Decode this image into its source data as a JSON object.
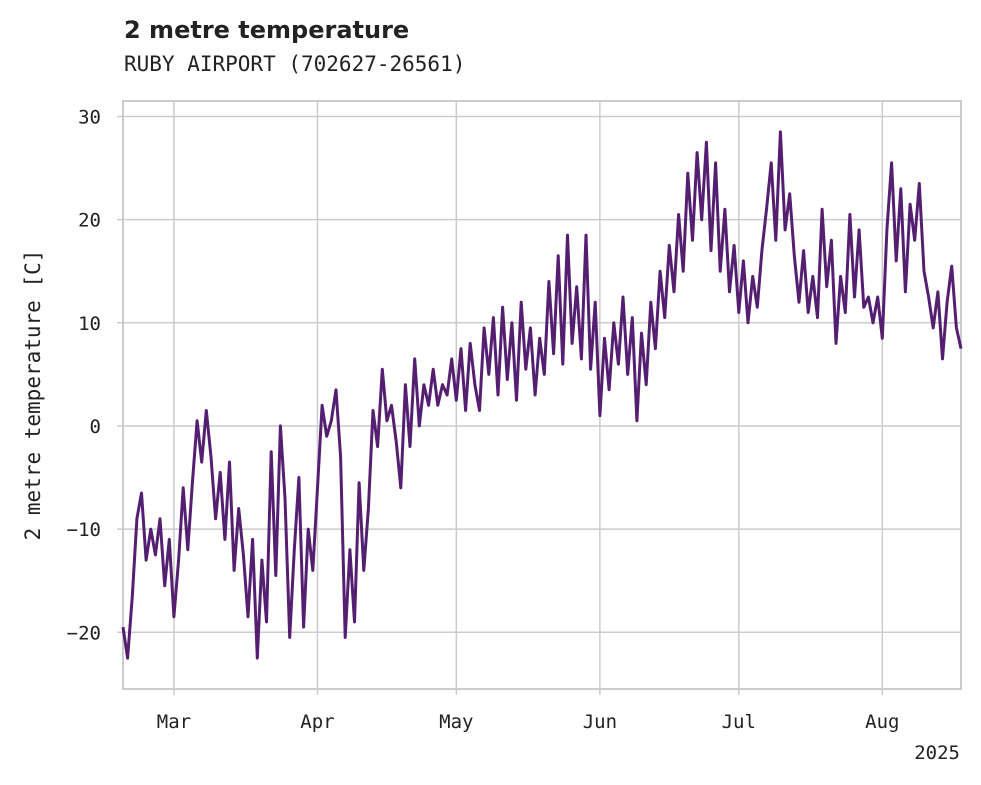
{
  "chart_data": {
    "type": "line",
    "title": "2 metre temperature",
    "subtitle": "RUBY AIRPORT (702627-26561)",
    "ylabel": "2 metre temperature [C]",
    "xlabel": "",
    "year_label": "2025",
    "xlim": [
      "2025-02-18",
      "2025-08-18"
    ],
    "ylim": [
      -25.5,
      31.5
    ],
    "y_ticks": [
      -20,
      -10,
      0,
      10,
      20,
      30
    ],
    "y_tick_labels": [
      "−20",
      "−10",
      "0",
      "10",
      "20",
      "30"
    ],
    "x_ticks": [
      {
        "date": "2025-03-01",
        "label": "Mar"
      },
      {
        "date": "2025-04-01",
        "label": "Apr"
      },
      {
        "date": "2025-05-01",
        "label": "May"
      },
      {
        "date": "2025-06-01",
        "label": "Jun"
      },
      {
        "date": "2025-07-01",
        "label": "Jul"
      },
      {
        "date": "2025-08-01",
        "label": "Aug"
      }
    ],
    "grid": true,
    "series": [
      {
        "color": "#541f70",
        "points": [
          [
            "2025-02-18",
            -19.5
          ],
          [
            "2025-02-19",
            -22.5
          ],
          [
            "2025-02-20",
            -16.5
          ],
          [
            "2025-02-21",
            -9.0
          ],
          [
            "2025-02-22",
            -6.5
          ],
          [
            "2025-02-23",
            -13.0
          ],
          [
            "2025-02-24",
            -10.0
          ],
          [
            "2025-02-25",
            -12.5
          ],
          [
            "2025-02-26",
            -9.0
          ],
          [
            "2025-02-27",
            -15.5
          ],
          [
            "2025-02-28",
            -11.0
          ],
          [
            "2025-03-01",
            -18.5
          ],
          [
            "2025-03-02",
            -13.0
          ],
          [
            "2025-03-03",
            -6.0
          ],
          [
            "2025-03-04",
            -12.0
          ],
          [
            "2025-03-05",
            -5.5
          ],
          [
            "2025-03-06",
            0.5
          ],
          [
            "2025-03-07",
            -3.5
          ],
          [
            "2025-03-08",
            1.5
          ],
          [
            "2025-03-09",
            -3.0
          ],
          [
            "2025-03-10",
            -9.0
          ],
          [
            "2025-03-11",
            -4.5
          ],
          [
            "2025-03-12",
            -11.0
          ],
          [
            "2025-03-13",
            -3.5
          ],
          [
            "2025-03-14",
            -14.0
          ],
          [
            "2025-03-15",
            -8.0
          ],
          [
            "2025-03-16",
            -12.5
          ],
          [
            "2025-03-17",
            -18.5
          ],
          [
            "2025-03-18",
            -11.0
          ],
          [
            "2025-03-19",
            -22.5
          ],
          [
            "2025-03-20",
            -13.0
          ],
          [
            "2025-03-21",
            -19.0
          ],
          [
            "2025-03-22",
            -2.5
          ],
          [
            "2025-03-23",
            -14.5
          ],
          [
            "2025-03-24",
            0.0
          ],
          [
            "2025-03-25",
            -7.0
          ],
          [
            "2025-03-26",
            -20.5
          ],
          [
            "2025-03-27",
            -12.0
          ],
          [
            "2025-03-28",
            -5.0
          ],
          [
            "2025-03-29",
            -19.5
          ],
          [
            "2025-03-30",
            -10.0
          ],
          [
            "2025-03-31",
            -14.0
          ],
          [
            "2025-04-01",
            -6.0
          ],
          [
            "2025-04-02",
            2.0
          ],
          [
            "2025-04-03",
            -1.0
          ],
          [
            "2025-04-04",
            0.5
          ],
          [
            "2025-04-05",
            3.5
          ],
          [
            "2025-04-06",
            -3.0
          ],
          [
            "2025-04-07",
            -20.5
          ],
          [
            "2025-04-08",
            -12.0
          ],
          [
            "2025-04-09",
            -19.0
          ],
          [
            "2025-04-10",
            -5.5
          ],
          [
            "2025-04-11",
            -14.0
          ],
          [
            "2025-04-12",
            -8.0
          ],
          [
            "2025-04-13",
            1.5
          ],
          [
            "2025-04-14",
            -2.0
          ],
          [
            "2025-04-15",
            5.5
          ],
          [
            "2025-04-16",
            0.5
          ],
          [
            "2025-04-17",
            2.0
          ],
          [
            "2025-04-18",
            -1.5
          ],
          [
            "2025-04-19",
            -6.0
          ],
          [
            "2025-04-20",
            4.0
          ],
          [
            "2025-04-21",
            -2.0
          ],
          [
            "2025-04-22",
            6.5
          ],
          [
            "2025-04-23",
            0.0
          ],
          [
            "2025-04-24",
            4.0
          ],
          [
            "2025-04-25",
            2.0
          ],
          [
            "2025-04-26",
            5.5
          ],
          [
            "2025-04-27",
            2.0
          ],
          [
            "2025-04-28",
            4.0
          ],
          [
            "2025-04-29",
            3.0
          ],
          [
            "2025-04-30",
            6.5
          ],
          [
            "2025-05-01",
            2.5
          ],
          [
            "2025-05-02",
            7.5
          ],
          [
            "2025-05-03",
            1.5
          ],
          [
            "2025-05-04",
            8.0
          ],
          [
            "2025-05-05",
            4.0
          ],
          [
            "2025-05-06",
            1.5
          ],
          [
            "2025-05-07",
            9.5
          ],
          [
            "2025-05-08",
            5.0
          ],
          [
            "2025-05-09",
            10.5
          ],
          [
            "2025-05-10",
            3.0
          ],
          [
            "2025-05-11",
            11.5
          ],
          [
            "2025-05-12",
            4.5
          ],
          [
            "2025-05-13",
            10.0
          ],
          [
            "2025-05-14",
            2.5
          ],
          [
            "2025-05-15",
            12.0
          ],
          [
            "2025-05-16",
            5.5
          ],
          [
            "2025-05-17",
            9.5
          ],
          [
            "2025-05-18",
            3.0
          ],
          [
            "2025-05-19",
            8.5
          ],
          [
            "2025-05-20",
            5.0
          ],
          [
            "2025-05-21",
            14.0
          ],
          [
            "2025-05-22",
            7.0
          ],
          [
            "2025-05-23",
            16.5
          ],
          [
            "2025-05-24",
            6.0
          ],
          [
            "2025-05-25",
            18.5
          ],
          [
            "2025-05-26",
            8.0
          ],
          [
            "2025-05-27",
            13.5
          ],
          [
            "2025-05-28",
            6.5
          ],
          [
            "2025-05-29",
            18.5
          ],
          [
            "2025-05-30",
            5.5
          ],
          [
            "2025-05-31",
            12.0
          ],
          [
            "2025-06-01",
            1.0
          ],
          [
            "2025-06-02",
            8.5
          ],
          [
            "2025-06-03",
            3.5
          ],
          [
            "2025-06-04",
            10.0
          ],
          [
            "2025-06-05",
            6.0
          ],
          [
            "2025-06-06",
            12.5
          ],
          [
            "2025-06-07",
            5.0
          ],
          [
            "2025-06-08",
            10.5
          ],
          [
            "2025-06-09",
            0.5
          ],
          [
            "2025-06-10",
            9.0
          ],
          [
            "2025-06-11",
            4.0
          ],
          [
            "2025-06-12",
            12.0
          ],
          [
            "2025-06-13",
            7.5
          ],
          [
            "2025-06-14",
            15.0
          ],
          [
            "2025-06-15",
            10.5
          ],
          [
            "2025-06-16",
            17.5
          ],
          [
            "2025-06-17",
            13.0
          ],
          [
            "2025-06-18",
            20.5
          ],
          [
            "2025-06-19",
            15.0
          ],
          [
            "2025-06-20",
            24.5
          ],
          [
            "2025-06-21",
            18.0
          ],
          [
            "2025-06-22",
            26.5
          ],
          [
            "2025-06-23",
            20.0
          ],
          [
            "2025-06-24",
            27.5
          ],
          [
            "2025-06-25",
            17.0
          ],
          [
            "2025-06-26",
            25.5
          ],
          [
            "2025-06-27",
            15.0
          ],
          [
            "2025-06-28",
            21.0
          ],
          [
            "2025-06-29",
            13.0
          ],
          [
            "2025-06-30",
            17.5
          ],
          [
            "2025-07-01",
            11.0
          ],
          [
            "2025-07-02",
            16.0
          ],
          [
            "2025-07-03",
            10.0
          ],
          [
            "2025-07-04",
            14.5
          ],
          [
            "2025-07-05",
            11.5
          ],
          [
            "2025-07-06",
            17.0
          ],
          [
            "2025-07-07",
            21.0
          ],
          [
            "2025-07-08",
            25.5
          ],
          [
            "2025-07-09",
            18.0
          ],
          [
            "2025-07-10",
            28.5
          ],
          [
            "2025-07-11",
            19.0
          ],
          [
            "2025-07-12",
            22.5
          ],
          [
            "2025-07-13",
            16.5
          ],
          [
            "2025-07-14",
            12.0
          ],
          [
            "2025-07-15",
            17.0
          ],
          [
            "2025-07-16",
            11.0
          ],
          [
            "2025-07-17",
            14.5
          ],
          [
            "2025-07-18",
            10.5
          ],
          [
            "2025-07-19",
            21.0
          ],
          [
            "2025-07-20",
            13.5
          ],
          [
            "2025-07-21",
            18.0
          ],
          [
            "2025-07-22",
            8.0
          ],
          [
            "2025-07-23",
            14.5
          ],
          [
            "2025-07-24",
            11.0
          ],
          [
            "2025-07-25",
            20.5
          ],
          [
            "2025-07-26",
            12.5
          ],
          [
            "2025-07-27",
            19.0
          ],
          [
            "2025-07-28",
            11.5
          ],
          [
            "2025-07-29",
            12.5
          ],
          [
            "2025-07-30",
            10.0
          ],
          [
            "2025-07-31",
            12.5
          ],
          [
            "2025-08-01",
            8.5
          ],
          [
            "2025-08-02",
            19.0
          ],
          [
            "2025-08-03",
            25.5
          ],
          [
            "2025-08-04",
            16.0
          ],
          [
            "2025-08-05",
            23.0
          ],
          [
            "2025-08-06",
            13.0
          ],
          [
            "2025-08-07",
            21.5
          ],
          [
            "2025-08-08",
            18.0
          ],
          [
            "2025-08-09",
            23.5
          ],
          [
            "2025-08-10",
            15.0
          ],
          [
            "2025-08-11",
            12.5
          ],
          [
            "2025-08-12",
            9.5
          ],
          [
            "2025-08-13",
            13.0
          ],
          [
            "2025-08-14",
            6.5
          ],
          [
            "2025-08-15",
            12.0
          ],
          [
            "2025-08-16",
            15.5
          ],
          [
            "2025-08-17",
            9.5
          ],
          [
            "2025-08-18",
            7.5
          ]
        ]
      }
    ]
  }
}
